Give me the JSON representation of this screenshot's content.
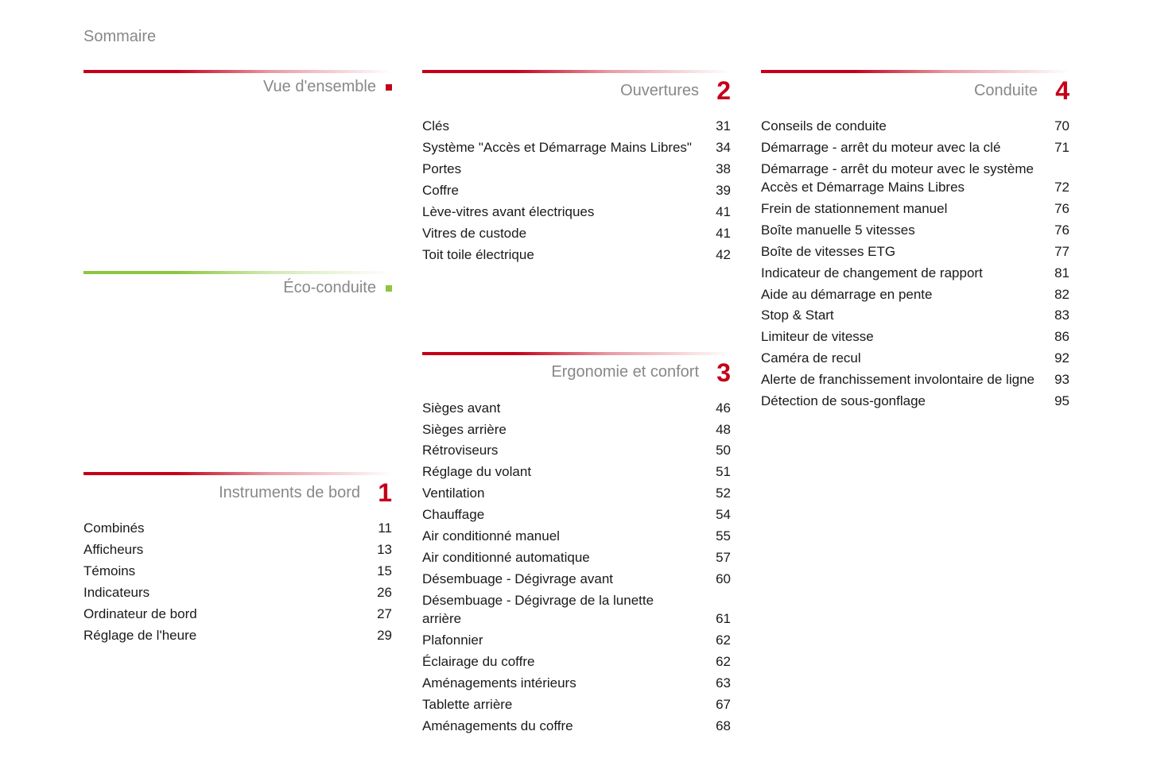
{
  "page_title": "Sommaire",
  "colors": {
    "accent_red": "#c40018",
    "accent_green": "#8cc63f",
    "text_primary": "#1a1a1a",
    "text_secondary": "#888888",
    "background": "#ffffff"
  },
  "typography": {
    "page_title_size": 20,
    "section_title_size": 20,
    "section_number_size": 32,
    "item_size": 17,
    "font_family": "Arial, Helvetica, sans-serif"
  },
  "columns": [
    {
      "sections": [
        {
          "title": "Vue d'ensemble",
          "bar_color": "red",
          "marker": "red",
          "number": null,
          "items": []
        },
        {
          "title": "Éco-conduite",
          "bar_color": "green",
          "marker": "green",
          "number": null,
          "items": []
        },
        {
          "title": "Instruments de bord",
          "bar_color": "red",
          "number": "1",
          "items": [
            {
              "label": "Combinés",
              "page": "11"
            },
            {
              "label": "Afficheurs",
              "page": "13"
            },
            {
              "label": "Témoins",
              "page": "15"
            },
            {
              "label": "Indicateurs",
              "page": "26"
            },
            {
              "label": "Ordinateur de bord",
              "page": "27"
            },
            {
              "label": "Réglage de l'heure",
              "page": "29"
            }
          ]
        }
      ]
    },
    {
      "sections": [
        {
          "title": "Ouvertures",
          "bar_color": "red",
          "number": "2",
          "items": [
            {
              "label": "Clés",
              "page": "31"
            },
            {
              "label": "Système \"Accès et Démarrage Mains Libres\"",
              "page": "34"
            },
            {
              "label": "Portes",
              "page": "38"
            },
            {
              "label": "Coffre",
              "page": "39"
            },
            {
              "label": "Lève-vitres avant électriques",
              "page": "41"
            },
            {
              "label": "Vitres de custode",
              "page": "41"
            },
            {
              "label": "Toit toile électrique",
              "page": "42"
            }
          ]
        },
        {
          "title": "Ergonomie et confort",
          "bar_color": "red",
          "number": "3",
          "items": [
            {
              "label": "Sièges avant",
              "page": "46"
            },
            {
              "label": "Sièges arrière",
              "page": "48"
            },
            {
              "label": "Rétroviseurs",
              "page": "50"
            },
            {
              "label": "Réglage du volant",
              "page": "51"
            },
            {
              "label": "Ventilation",
              "page": "52"
            },
            {
              "label": "Chauffage",
              "page": "54"
            },
            {
              "label": "Air conditionné manuel",
              "page": "55"
            },
            {
              "label": "Air conditionné automatique",
              "page": "57"
            },
            {
              "label": "Désembuage - Dégivrage avant",
              "page": "60"
            },
            {
              "label": "Désembuage - Dégivrage de la lunette arrière",
              "page": "61"
            },
            {
              "label": "Plafonnier",
              "page": "62"
            },
            {
              "label": "Éclairage du coffre",
              "page": "62"
            },
            {
              "label": "Aménagements intérieurs",
              "page": "63"
            },
            {
              "label": "Tablette arrière",
              "page": "67"
            },
            {
              "label": "Aménagements du coffre",
              "page": "68"
            }
          ]
        }
      ]
    },
    {
      "sections": [
        {
          "title": "Conduite",
          "bar_color": "red",
          "number": "4",
          "items": [
            {
              "label": "Conseils de conduite",
              "page": "70"
            },
            {
              "label": "Démarrage - arrêt du moteur avec la clé",
              "page": "71"
            },
            {
              "label": "Démarrage - arrêt du moteur avec le système Accès et Démarrage Mains Libres",
              "page": "72"
            },
            {
              "label": "Frein de stationnement manuel",
              "page": "76"
            },
            {
              "label": "Boîte manuelle 5 vitesses",
              "page": "76"
            },
            {
              "label": "Boîte de vitesses ETG",
              "page": "77"
            },
            {
              "label": "Indicateur de changement de rapport",
              "page": "81"
            },
            {
              "label": "Aide au démarrage en pente",
              "page": "82"
            },
            {
              "label": "Stop & Start",
              "page": "83"
            },
            {
              "label": "Limiteur de vitesse",
              "page": "86"
            },
            {
              "label": "Caméra de recul",
              "page": "92"
            },
            {
              "label": "Alerte de franchissement involontaire de ligne",
              "page": "93"
            },
            {
              "label": "Détection de sous-gonflage",
              "page": "95"
            }
          ]
        }
      ]
    }
  ]
}
